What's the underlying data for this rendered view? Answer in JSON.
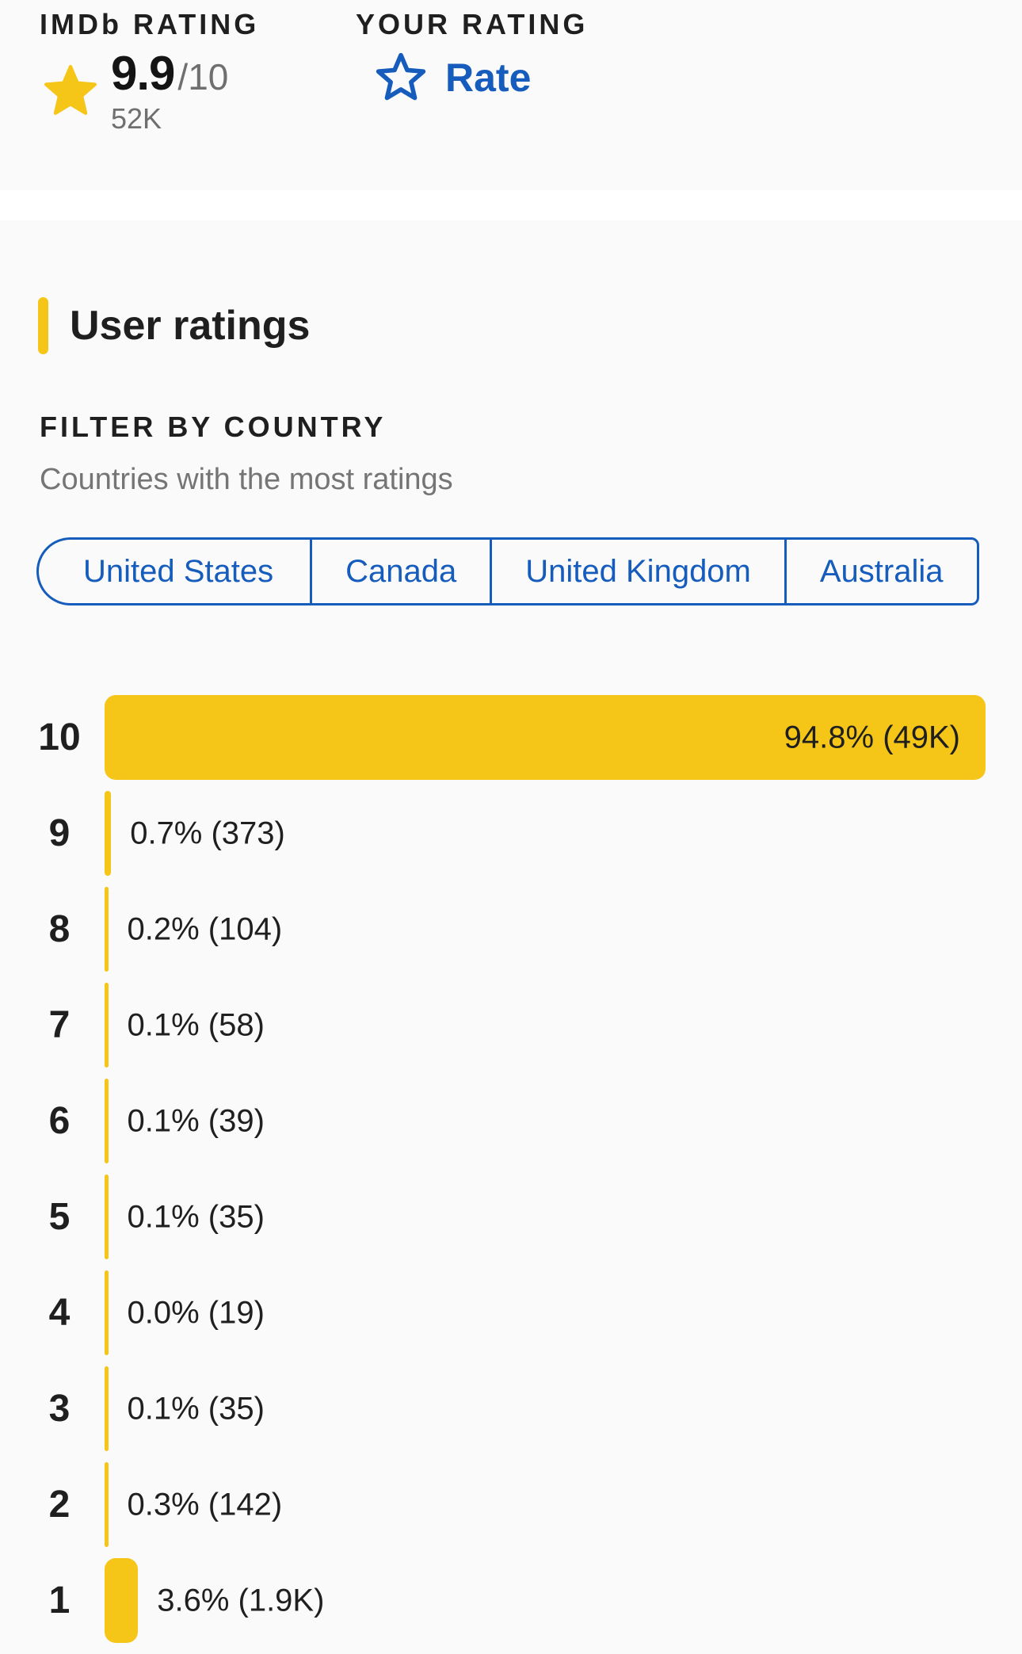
{
  "rating_panel": {
    "imdb": {
      "heading": "IMDb RATING",
      "score": "9.9",
      "out_of": "/10",
      "votes": "52K"
    },
    "user": {
      "heading": "YOUR RATING",
      "rate_label": "Rate"
    }
  },
  "user_ratings": {
    "title": "User ratings",
    "filter_heading": "FILTER BY COUNTRY",
    "filter_subtitle": "Countries with the most ratings",
    "countries": [
      "United States",
      "Canada",
      "United Kingdom",
      "Australia"
    ]
  },
  "chart_data": {
    "type": "bar",
    "orientation": "horizontal",
    "title": "User ratings",
    "categories": [
      "10",
      "9",
      "8",
      "7",
      "6",
      "5",
      "4",
      "3",
      "2",
      "1"
    ],
    "values_pct": [
      94.8,
      0.7,
      0.2,
      0.1,
      0.1,
      0.1,
      0.0,
      0.1,
      0.3,
      3.6
    ],
    "counts": [
      "49K",
      "373",
      "104",
      "58",
      "39",
      "35",
      "19",
      "35",
      "142",
      "1.9K"
    ],
    "bar_labels": [
      "94.8% (49K)",
      "0.7% (373)",
      "0.2% (104)",
      "0.1% (58)",
      "0.1% (39)",
      "0.1% (35)",
      "0.0% (19)",
      "0.1% (35)",
      "0.3% (142)",
      "3.6% (1.9K)"
    ],
    "max_pct": 94.8,
    "bar_color": "#F5C518",
    "value_label_position": "right of bar, inside bar for the max row"
  },
  "colors": {
    "accent_yellow": "#F5C518",
    "link_blue": "#155CBD",
    "text_dark": "#1F1F1F",
    "text_gray": "#757575",
    "section_bg": "#FAFAFA",
    "divider_band": "#FFFFFF"
  }
}
